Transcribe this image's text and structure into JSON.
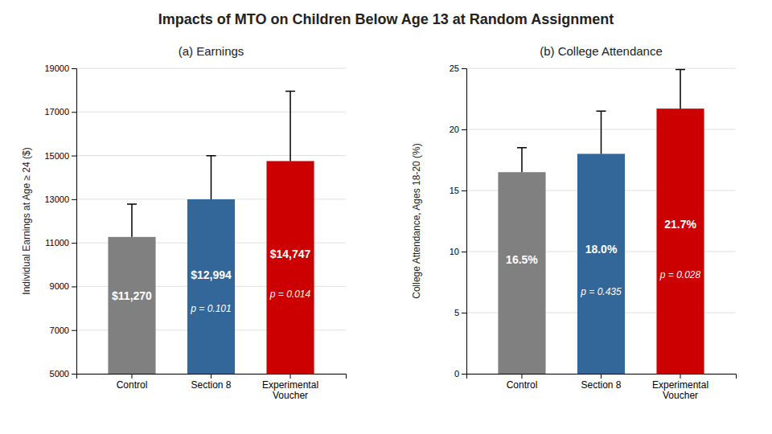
{
  "title": "Impacts of MTO on Children Below Age 13 at Random Assignment",
  "chart_data": [
    {
      "type": "bar",
      "title": "(a) Earnings",
      "categories": [
        "Control",
        "Section 8",
        "Experimental\nVoucher"
      ],
      "values": [
        11270,
        12994,
        14747
      ],
      "value_labels": [
        "$11,270",
        "$12,994",
        "$14,747"
      ],
      "errors_hi": [
        1500,
        2000,
        3200
      ],
      "annotations": [
        null,
        "p = 0.101",
        "p = 0.014"
      ],
      "colors": [
        "#808080",
        "#336699",
        "#CC0000"
      ],
      "y_label": "Individual Earnings at Age ≥ 24 ($)",
      "ylim": [
        5000,
        19000
      ],
      "yticks": [
        5000,
        7000,
        9000,
        11000,
        13000,
        15000,
        17000,
        19000
      ],
      "grid": true,
      "data_labels": true
    },
    {
      "type": "bar",
      "title": "(b) College Attendance",
      "categories": [
        "Control",
        "Section 8",
        "Experimental\nVoucher"
      ],
      "values": [
        16.5,
        18.0,
        21.7
      ],
      "value_labels": [
        "16.5%",
        "18.0%",
        "21.7%"
      ],
      "errors_hi": [
        2.0,
        3.5,
        3.2
      ],
      "annotations": [
        null,
        "p = 0.435",
        "p = 0.028"
      ],
      "colors": [
        "#808080",
        "#336699",
        "#CC0000"
      ],
      "y_label": "College Attendance, Ages 18-20 (%)",
      "ylim": [
        0,
        25
      ],
      "yticks": [
        0,
        5,
        10,
        15,
        20,
        25
      ],
      "grid": true,
      "data_labels": true
    }
  ]
}
